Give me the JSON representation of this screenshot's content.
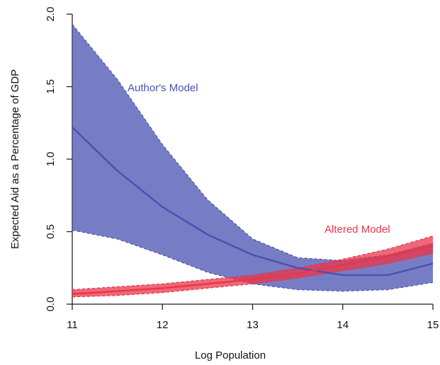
{
  "chart_data": {
    "type": "band-line",
    "x_label": "Log Population",
    "y_label": "Expected Aid as a Percentage of GDP",
    "x": [
      11,
      11.5,
      12,
      12.5,
      13,
      13.5,
      14,
      14.5,
      15
    ],
    "series": [
      {
        "name": "Author's Model",
        "color": "#4a52b0",
        "values": [
          1.22,
          0.92,
          0.67,
          0.48,
          0.34,
          0.25,
          0.2,
          0.2,
          0.28
        ],
        "upper": [
          1.93,
          1.55,
          1.1,
          0.72,
          0.45,
          0.32,
          0.3,
          0.34,
          0.42
        ],
        "lower": [
          0.51,
          0.45,
          0.34,
          0.22,
          0.14,
          0.1,
          0.09,
          0.1,
          0.15
        ]
      },
      {
        "name": "Altered Model",
        "color": "#e8364a",
        "values": [
          0.07,
          0.09,
          0.11,
          0.14,
          0.17,
          0.21,
          0.27,
          0.33,
          0.4
        ],
        "upper": [
          0.1,
          0.12,
          0.14,
          0.17,
          0.2,
          0.25,
          0.31,
          0.38,
          0.47
        ],
        "lower": [
          0.05,
          0.06,
          0.08,
          0.11,
          0.14,
          0.18,
          0.23,
          0.28,
          0.35
        ]
      }
    ],
    "xlim": [
      11,
      15
    ],
    "ylim": [
      0,
      2
    ],
    "xticks": [
      11,
      12,
      13,
      14,
      15
    ],
    "yticks": [
      {
        "value": 0,
        "label": "0.0"
      },
      0.5,
      {
        "value": 1,
        "label": "1.0"
      },
      1.5,
      {
        "value": 2,
        "label": "2.0"
      }
    ]
  }
}
